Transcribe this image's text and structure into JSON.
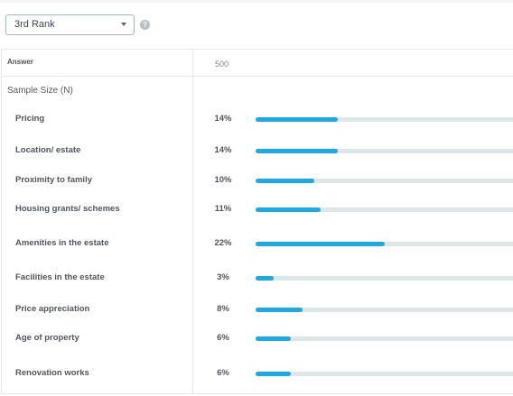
{
  "filter": {
    "selected": "3rd Rank",
    "help_glyph": "?"
  },
  "table": {
    "header_answer": "Answer",
    "header_value": "500",
    "sample_label": "Sample Size (N)",
    "bar_max_percent": 44,
    "rows": [
      {
        "label": "Pricing",
        "value": "14%",
        "percent": 14
      },
      {
        "label": "Location/ estate",
        "value": "14%",
        "percent": 14
      },
      {
        "label": "Proximity to family",
        "value": "10%",
        "percent": 10
      },
      {
        "label": "Housing grants/ schemes",
        "value": "11%",
        "percent": 11
      },
      {
        "label": "Amenities in the estate",
        "value": "22%",
        "percent": 22
      },
      {
        "label": "Facilities in the estate",
        "value": "3%",
        "percent": 3
      },
      {
        "label": "Price appreciation",
        "value": "8%",
        "percent": 8
      },
      {
        "label": "Age of property",
        "value": "6%",
        "percent": 6
      },
      {
        "label": "Renovation works",
        "value": "6%",
        "percent": 6
      }
    ]
  },
  "colors": {
    "bar_fill": "#20a9e1",
    "bar_track": "#dde6e9",
    "select_border": "#9fb8cf"
  }
}
